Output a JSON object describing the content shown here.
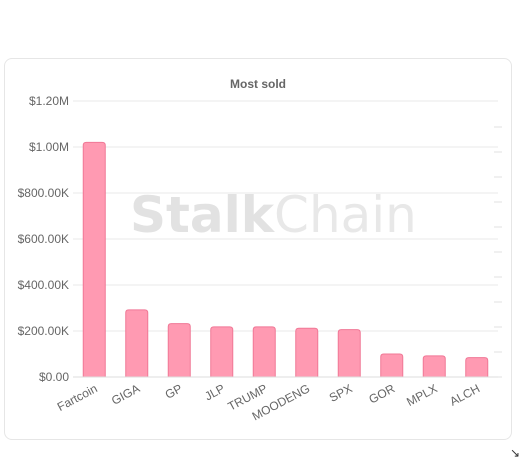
{
  "card": {
    "watermark": "StalkChain",
    "watermark_parts": [
      "Stalk",
      "Chain"
    ]
  },
  "chart_data": {
    "type": "bar",
    "title": "Most sold",
    "xlabel": "",
    "ylabel": "",
    "categories": [
      "Fartcoin",
      "GIGA",
      "GP",
      "JLP",
      "TRUMP",
      "MOODENG",
      "SPX",
      "GOR",
      "MPLX",
      "ALCH"
    ],
    "values": [
      1020000,
      292000,
      232000,
      218000,
      218000,
      212000,
      206000,
      100000,
      92000,
      84000
    ],
    "ylim": [
      0,
      1200000
    ],
    "yticks": [
      0,
      200000,
      400000,
      600000,
      800000,
      1000000,
      1200000
    ],
    "ytick_labels": [
      "$0.00",
      "$200.00K",
      "$400.00K",
      "$600.00K",
      "$800.00K",
      "$1.00M",
      "$1.20M"
    ],
    "grid": true,
    "legend": "none",
    "bar_color": "#ff9ab2",
    "bar_border_color": "#f07896"
  }
}
